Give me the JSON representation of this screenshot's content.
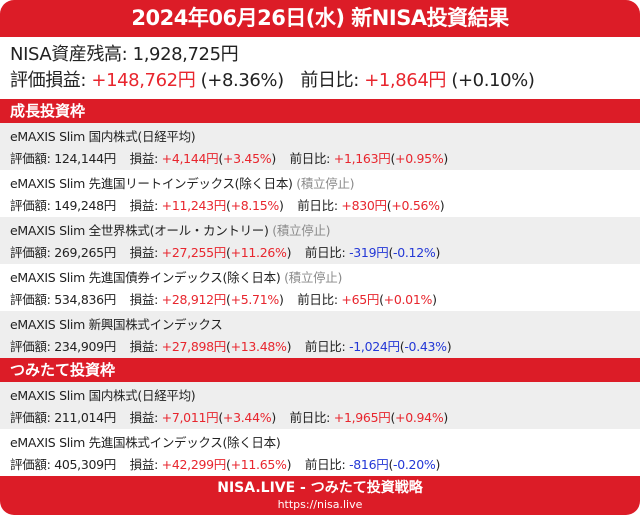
{
  "header": {
    "title": "2024年06月26日(水) 新NISA投資結果"
  },
  "summary": {
    "balance_label": "NISA資産残高: ",
    "balance_value": "1,928,725円",
    "pl_label": "評価損益: ",
    "pl_value": "+148,762円",
    "pl_pct": "(+8.36%)",
    "daily_label": "前日比: ",
    "daily_value": "+1,864円",
    "daily_pct": "(+0.10%)"
  },
  "labels": {
    "valuation": "評価額: ",
    "profit": "損益: ",
    "daily": "前日比: ",
    "paren_open": "(",
    "paren_close": ")"
  },
  "sections": [
    {
      "title": "成長投資枠",
      "funds": [
        {
          "name": "eMAXIS Slim 国内株式(日経平均)",
          "status": "",
          "valuation": "124,144円",
          "profit": "+4,144円",
          "profit_pct": "+3.45%",
          "profit_color": "red",
          "daily": "+1,163円",
          "daily_pct": "+0.95%",
          "daily_color": "red"
        },
        {
          "name": "eMAXIS Slim 先進国リートインデックス(除く日本)",
          "status": "(積立停止)",
          "valuation": "149,248円",
          "profit": "+11,243円",
          "profit_pct": "+8.15%",
          "profit_color": "red",
          "daily": "+830円",
          "daily_pct": "+0.56%",
          "daily_color": "red"
        },
        {
          "name": "eMAXIS Slim 全世界株式(オール・カントリー)",
          "status": "(積立停止)",
          "valuation": "269,265円",
          "profit": "+27,255円",
          "profit_pct": "+11.26%",
          "profit_color": "red",
          "daily": "-319円",
          "daily_pct": "-0.12%",
          "daily_color": "blue"
        },
        {
          "name": "eMAXIS Slim 先進国債券インデックス(除く日本)",
          "status": "(積立停止)",
          "valuation": "534,836円",
          "profit": "+28,912円",
          "profit_pct": "+5.71%",
          "profit_color": "red",
          "daily": "+65円",
          "daily_pct": "+0.01%",
          "daily_color": "red"
        },
        {
          "name": "eMAXIS Slim 新興国株式インデックス",
          "status": "",
          "valuation": "234,909円",
          "profit": "+27,898円",
          "profit_pct": "+13.48%",
          "profit_color": "red",
          "daily": "-1,024円",
          "daily_pct": "-0.43%",
          "daily_color": "blue"
        }
      ]
    },
    {
      "title": "つみたて投資枠",
      "funds": [
        {
          "name": "eMAXIS Slim 国内株式(日経平均)",
          "status": "",
          "valuation": "211,014円",
          "profit": "+7,011円",
          "profit_pct": "+3.44%",
          "profit_color": "red",
          "daily": "+1,965円",
          "daily_pct": "+0.94%",
          "daily_color": "red"
        },
        {
          "name": "eMAXIS Slim 先進国株式インデックス(除く日本)",
          "status": "",
          "valuation": "405,309円",
          "profit": "+42,299円",
          "profit_pct": "+11.65%",
          "profit_color": "red",
          "daily": "-816円",
          "daily_pct": "-0.20%",
          "daily_color": "blue"
        }
      ]
    }
  ],
  "footer": {
    "brand": "NISA.LIVE - つみたて投資戦略",
    "url": "https://nisa.live"
  },
  "colors": {
    "brand_red": "#dc1c27",
    "gain_red": "#e8262e",
    "loss_blue": "#2438d6",
    "status_gray": "#8a8a8a",
    "row_alt": "#eeeeee"
  }
}
